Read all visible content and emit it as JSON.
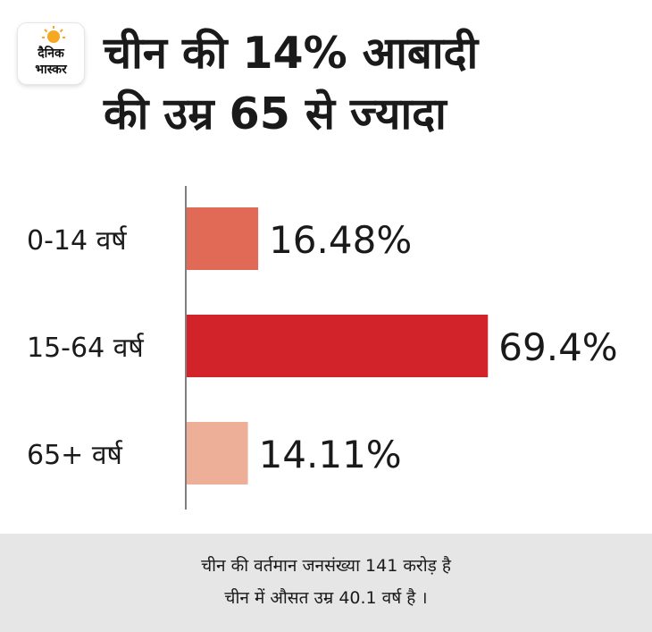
{
  "brand": {
    "logo_line1": "दैनिक",
    "logo_line2": "भास्कर",
    "logo_sun_color": "#f7a823"
  },
  "title": {
    "line1": "चीन की 14% आबादी",
    "line2": "की उम्र 65 से ज्यादा"
  },
  "chart_data": {
    "type": "bar",
    "orientation": "horizontal",
    "categories": [
      "0-14 वर्ष",
      "15-64 वर्ष",
      "65+ वर्ष"
    ],
    "values": [
      16.48,
      69.4,
      14.11
    ],
    "value_labels": [
      "16.48%",
      "69.4%",
      "14.11%"
    ],
    "colors": [
      "#e06a55",
      "#d2232a",
      "#eeaf98"
    ],
    "xlim": [
      0,
      100
    ],
    "grid": false,
    "legend": "none",
    "title": "",
    "xlabel": "",
    "ylabel": ""
  },
  "footer": {
    "line1": "चीन की वर्तमान जनसंख्या 141 करोड़ है",
    "line2": "चीन में औसत उम्र 40.1 वर्ष है ।",
    "background": "#e6e6e6"
  }
}
